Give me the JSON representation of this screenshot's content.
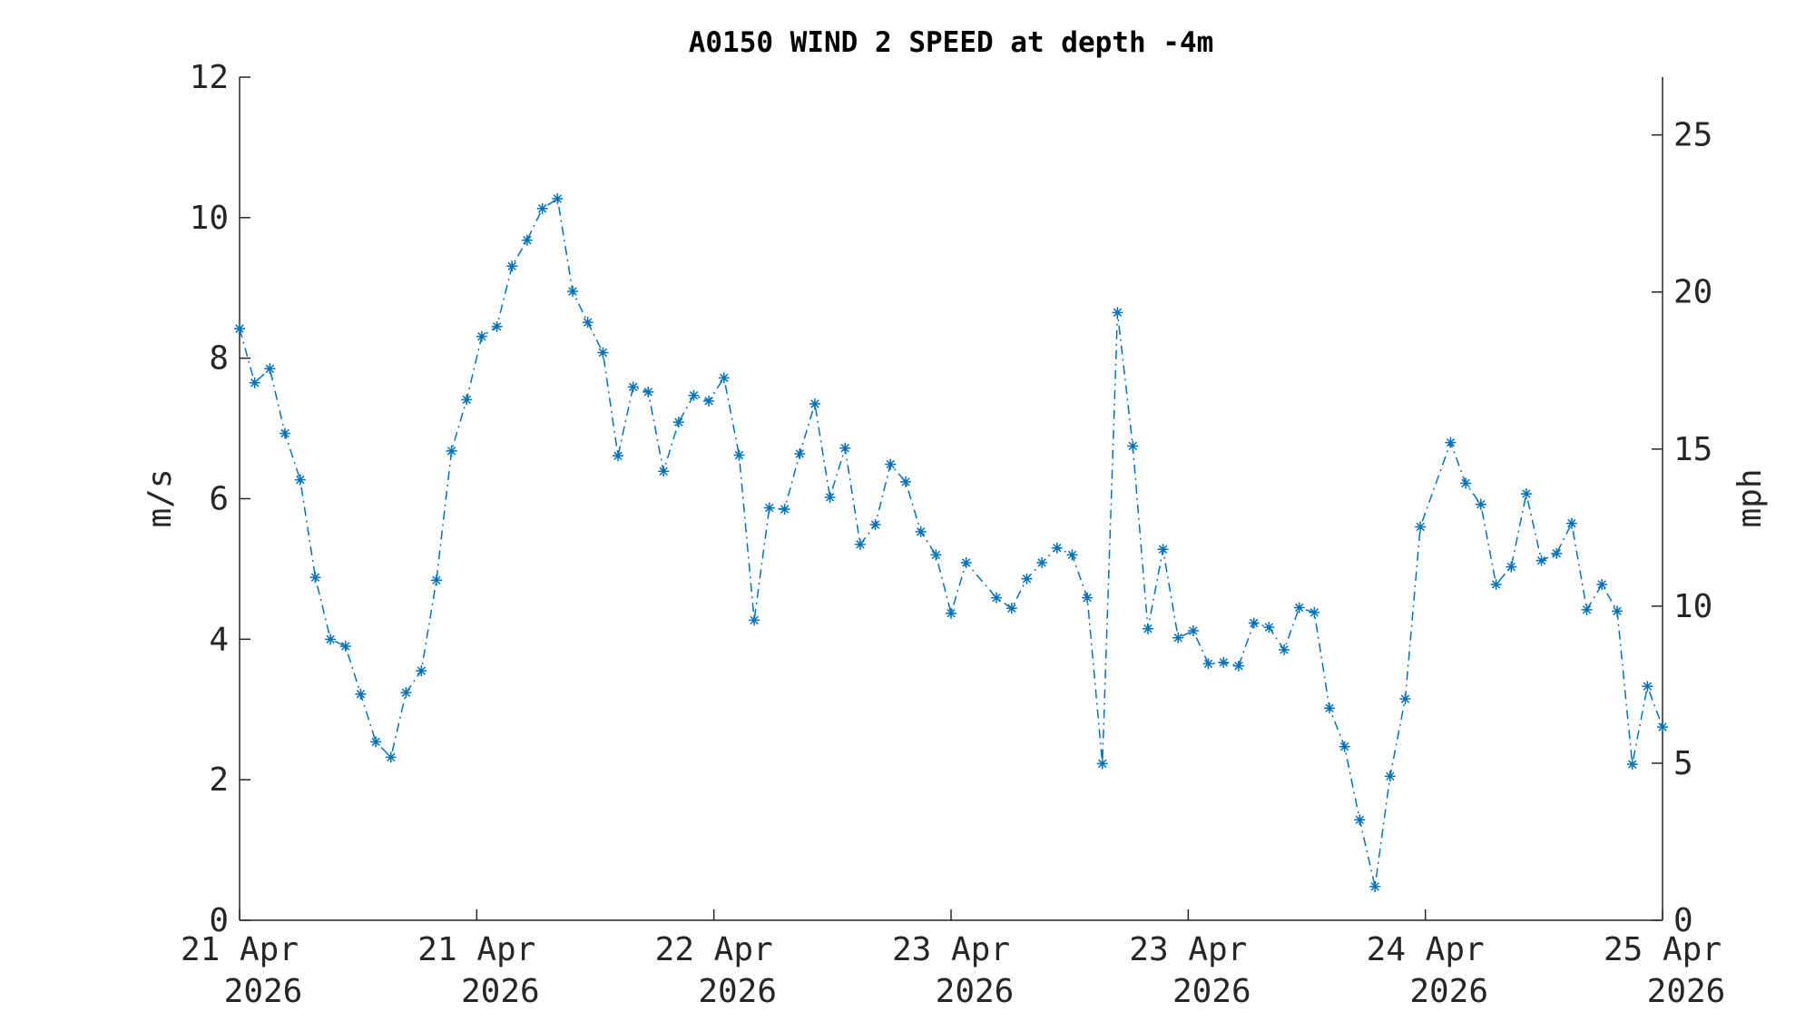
{
  "chart_data": {
    "type": "line",
    "title": "A0150 WIND 2 SPEED at depth -4m",
    "ylabel": "m/s",
    "y2label": "mph",
    "color": "#0072bd",
    "line_style": "dash-dot",
    "marker": "asterisk",
    "xlim": [
      0,
      96
    ],
    "xticks": [
      {
        "value": 0,
        "label": "21 Apr 2026"
      },
      {
        "value": 16,
        "label": "21 Apr 2026"
      },
      {
        "value": 32,
        "label": "22 Apr 2026"
      },
      {
        "value": 48,
        "label": "23 Apr 2026"
      },
      {
        "value": 64,
        "label": "23 Apr 2026"
      },
      {
        "value": 80,
        "label": "24 Apr 2026"
      },
      {
        "value": 96,
        "label": "25 Apr 2026"
      }
    ],
    "ylim": [
      0,
      12
    ],
    "yticks": [
      0,
      2,
      4,
      6,
      8,
      10,
      12
    ],
    "y2lim": [
      0,
      26.84
    ],
    "y2ticks": [
      0,
      5,
      10,
      15,
      20,
      25
    ],
    "x": [
      0,
      1.02,
      2.04,
      3.06,
      4.09,
      5.11,
      6.13,
      7.15,
      8.17,
      9.19,
      10.21,
      11.23,
      12.26,
      13.28,
      14.3,
      15.32,
      16.34,
      17.36,
      18.38,
      19.4,
      20.43,
      21.45,
      22.47,
      23.49,
      24.51,
      25.53,
      26.55,
      27.57,
      28.6,
      29.62,
      30.64,
      31.66,
      32.68,
      33.7,
      34.72,
      35.74,
      36.77,
      37.79,
      38.81,
      39.83,
      40.85,
      41.87,
      42.89,
      43.91,
      44.94,
      45.96,
      46.98,
      48.0,
      49.02,
      51.06,
      52.09,
      53.11,
      54.13,
      55.15,
      56.17,
      57.19,
      58.21,
      59.23,
      60.26,
      61.28,
      62.3,
      63.32,
      64.34,
      65.36,
      66.38,
      67.4,
      68.43,
      69.45,
      70.47,
      71.49,
      72.51,
      73.53,
      74.55,
      75.57,
      76.6,
      77.62,
      78.64,
      79.66,
      81.7,
      82.72,
      83.74,
      84.77,
      85.79,
      86.81,
      87.83,
      88.85,
      89.87,
      90.89,
      91.91,
      92.94,
      93.96,
      94.98,
      96.0
    ],
    "values": [
      8.42,
      7.65,
      7.85,
      6.93,
      6.27,
      4.88,
      4.0,
      3.9,
      3.22,
      2.54,
      2.32,
      3.24,
      3.55,
      4.84,
      6.68,
      7.41,
      8.31,
      8.45,
      9.31,
      9.68,
      10.13,
      10.27,
      8.95,
      8.51,
      8.08,
      6.61,
      7.59,
      7.52,
      6.39,
      7.09,
      7.47,
      7.39,
      7.72,
      6.62,
      4.27,
      5.87,
      5.85,
      6.64,
      7.35,
      6.02,
      6.72,
      5.35,
      5.63,
      6.49,
      6.24,
      5.53,
      5.2,
      4.37,
      5.09,
      4.59,
      4.44,
      4.86,
      5.09,
      5.3,
      5.2,
      4.59,
      2.23,
      8.65,
      6.75,
      4.15,
      5.28,
      4.02,
      4.12,
      3.65,
      3.67,
      3.62,
      4.23,
      4.17,
      3.85,
      4.45,
      4.38,
      3.02,
      2.47,
      1.43,
      0.48,
      2.05,
      3.15,
      5.6,
      6.8,
      6.22,
      5.92,
      4.78,
      5.03,
      6.07,
      5.12,
      5.22,
      5.65,
      4.42,
      4.78,
      4.4,
      2.22,
      3.33,
      2.75
    ]
  }
}
